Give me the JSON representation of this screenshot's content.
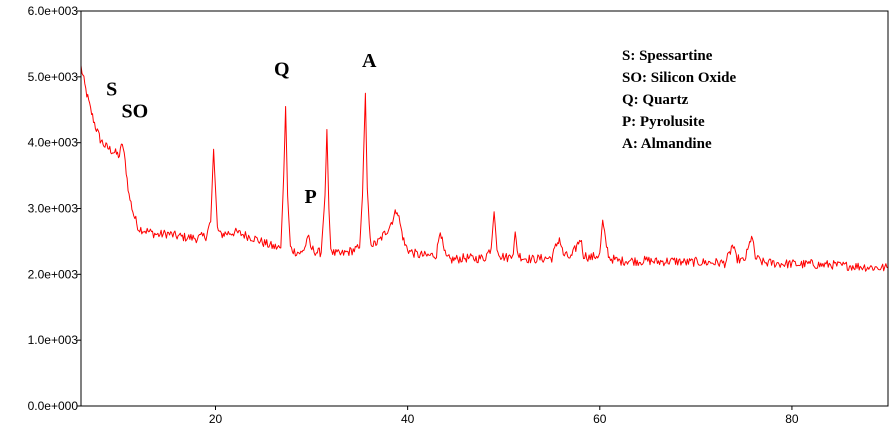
{
  "chart_data": {
    "type": "line",
    "title": "",
    "xlabel": "",
    "ylabel": "",
    "xlim": [
      6,
      90
    ],
    "ylim": [
      0,
      6000
    ],
    "grid": false,
    "legend_position": "top-right",
    "line_color": "#ff0000",
    "x_ticks": [
      {
        "value": 20,
        "label": "20"
      },
      {
        "value": 40,
        "label": "40"
      },
      {
        "value": 60,
        "label": "60"
      },
      {
        "value": 80,
        "label": "80"
      }
    ],
    "y_ticks": [
      {
        "value": 0,
        "label": "0.0e+000"
      },
      {
        "value": 1000,
        "label": "1.0e+003"
      },
      {
        "value": 2000,
        "label": "2.0e+003"
      },
      {
        "value": 3000,
        "label": "3.0e+003"
      },
      {
        "value": 4000,
        "label": "4.0e+003"
      },
      {
        "value": 5000,
        "label": "5.0e+003"
      },
      {
        "value": 6000,
        "label": "6.0e+003"
      }
    ],
    "series": [
      {
        "x": [
          6.0,
          6.5,
          7.0,
          7.5,
          8.0,
          8.5,
          9.0,
          9.5,
          10.0,
          10.3,
          10.6,
          11.0,
          11.5,
          12.0,
          13.0,
          14.0,
          15.0,
          16.0,
          17.0,
          18.0,
          19.0,
          19.5,
          19.8,
          20.0,
          20.2,
          20.5,
          21.0,
          22.0,
          23.0,
          24.0,
          25.0,
          26.0,
          26.8,
          27.1,
          27.3,
          27.5,
          27.8,
          28.2,
          29.0,
          29.4,
          29.6,
          29.9,
          30.5,
          31.0,
          31.4,
          31.6,
          31.8,
          32.0,
          32.3,
          33.0,
          34.0,
          35.0,
          35.3,
          35.6,
          35.8,
          36.1,
          36.5,
          37.0,
          37.5,
          38.0,
          38.5,
          38.9,
          39.3,
          39.7,
          40.2,
          41.0,
          42.0,
          43.0,
          43.4,
          43.7,
          44.0,
          44.5,
          45.0,
          46.0,
          47.0,
          48.0,
          48.7,
          49.0,
          49.3,
          49.7,
          50.5,
          51.0,
          51.2,
          51.5,
          52.0,
          53.0,
          54.0,
          55.0,
          55.5,
          55.8,
          56.2,
          57.0,
          57.5,
          58.0,
          58.3,
          59.0,
          60.0,
          60.3,
          60.6,
          61.0,
          62.0,
          63.0,
          64.0,
          65.0,
          66.0,
          67.0,
          68.0,
          69.0,
          70.0,
          71.0,
          72.0,
          73.0,
          73.5,
          73.8,
          74.2,
          75.0,
          75.5,
          75.8,
          76.2,
          77.0,
          78.0,
          79.0,
          80.0,
          81.0,
          82.0,
          83.0,
          84.0,
          85.0,
          86.0,
          87.0,
          88.0,
          89.0,
          90.0
        ],
        "y": [
          5150,
          4800,
          4500,
          4250,
          4050,
          3950,
          3900,
          3850,
          3800,
          4000,
          3700,
          3200,
          2900,
          2700,
          2650,
          2600,
          2620,
          2580,
          2560,
          2550,
          2580,
          2800,
          3900,
          3300,
          2700,
          2600,
          2620,
          2640,
          2600,
          2550,
          2480,
          2420,
          2400,
          3500,
          4550,
          3200,
          2400,
          2350,
          2320,
          2450,
          2600,
          2400,
          2340,
          2330,
          3200,
          4200,
          3000,
          2400,
          2320,
          2300,
          2350,
          2400,
          3200,
          4750,
          3300,
          2500,
          2450,
          2500,
          2600,
          2700,
          2850,
          3000,
          2700,
          2450,
          2350,
          2300,
          2280,
          2300,
          2700,
          2400,
          2250,
          2220,
          2230,
          2250,
          2240,
          2250,
          2400,
          2950,
          2400,
          2280,
          2250,
          2350,
          2600,
          2300,
          2250,
          2230,
          2240,
          2250,
          2450,
          2550,
          2300,
          2250,
          2400,
          2550,
          2300,
          2250,
          2300,
          2800,
          2500,
          2250,
          2200,
          2210,
          2200,
          2210,
          2190,
          2200,
          2200,
          2180,
          2190,
          2180,
          2180,
          2170,
          2300,
          2450,
          2250,
          2190,
          2400,
          2600,
          2250,
          2180,
          2170,
          2160,
          2160,
          2150,
          2160,
          2140,
          2150,
          2130,
          2130,
          2120,
          2110,
          2100,
          2100
        ]
      }
    ],
    "peak_labels": [
      {
        "label": "S",
        "x": 9.2,
        "y": 4720
      },
      {
        "label": "SO",
        "x": 11.6,
        "y": 4380
      },
      {
        "label": "Q",
        "x": 26.9,
        "y": 5020
      },
      {
        "label": "P",
        "x": 29.9,
        "y": 3080
      },
      {
        "label": "A",
        "x": 36.0,
        "y": 5150
      }
    ],
    "legend": [
      "S: Spessartine",
      "SO: Silicon Oxide",
      "Q: Quartz",
      "P: Pyrolusite",
      "A: Almandine"
    ]
  }
}
